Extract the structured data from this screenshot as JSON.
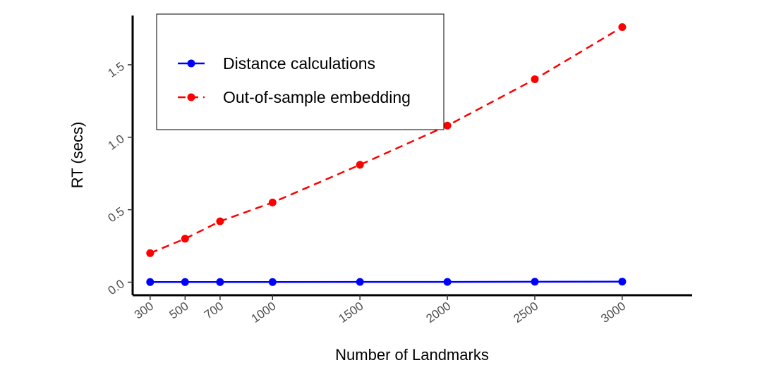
{
  "chart_data": {
    "type": "line",
    "title": "",
    "xlabel": "Number of Landmarks",
    "ylabel": "RT (secs)",
    "x": [
      300,
      500,
      700,
      1000,
      1500,
      2000,
      2500,
      3000
    ],
    "x_tick_labels": [
      "300",
      "500",
      "700",
      "1000",
      "1500",
      "2000",
      "2500",
      "3000"
    ],
    "y_ticks": [
      0.0,
      0.5,
      1.0,
      1.5
    ],
    "y_tick_labels": [
      "0.0",
      "0.5",
      "1.0",
      "1.5"
    ],
    "xlim": [
      200,
      3400
    ],
    "ylim": [
      -0.09,
      1.84
    ],
    "grid": false,
    "legend_position": "top-left",
    "series": [
      {
        "name": "Distance calculations",
        "color": "#0000ff",
        "line_style": "solid",
        "values": [
          0.001,
          0.001,
          0.001,
          0.001,
          0.002,
          0.002,
          0.003,
          0.004
        ]
      },
      {
        "name": "Out-of-sample embedding",
        "color": "#ff0000",
        "line_style": "dashed",
        "values": [
          0.2,
          0.3,
          0.42,
          0.55,
          0.81,
          1.08,
          1.4,
          1.76
        ]
      }
    ]
  }
}
